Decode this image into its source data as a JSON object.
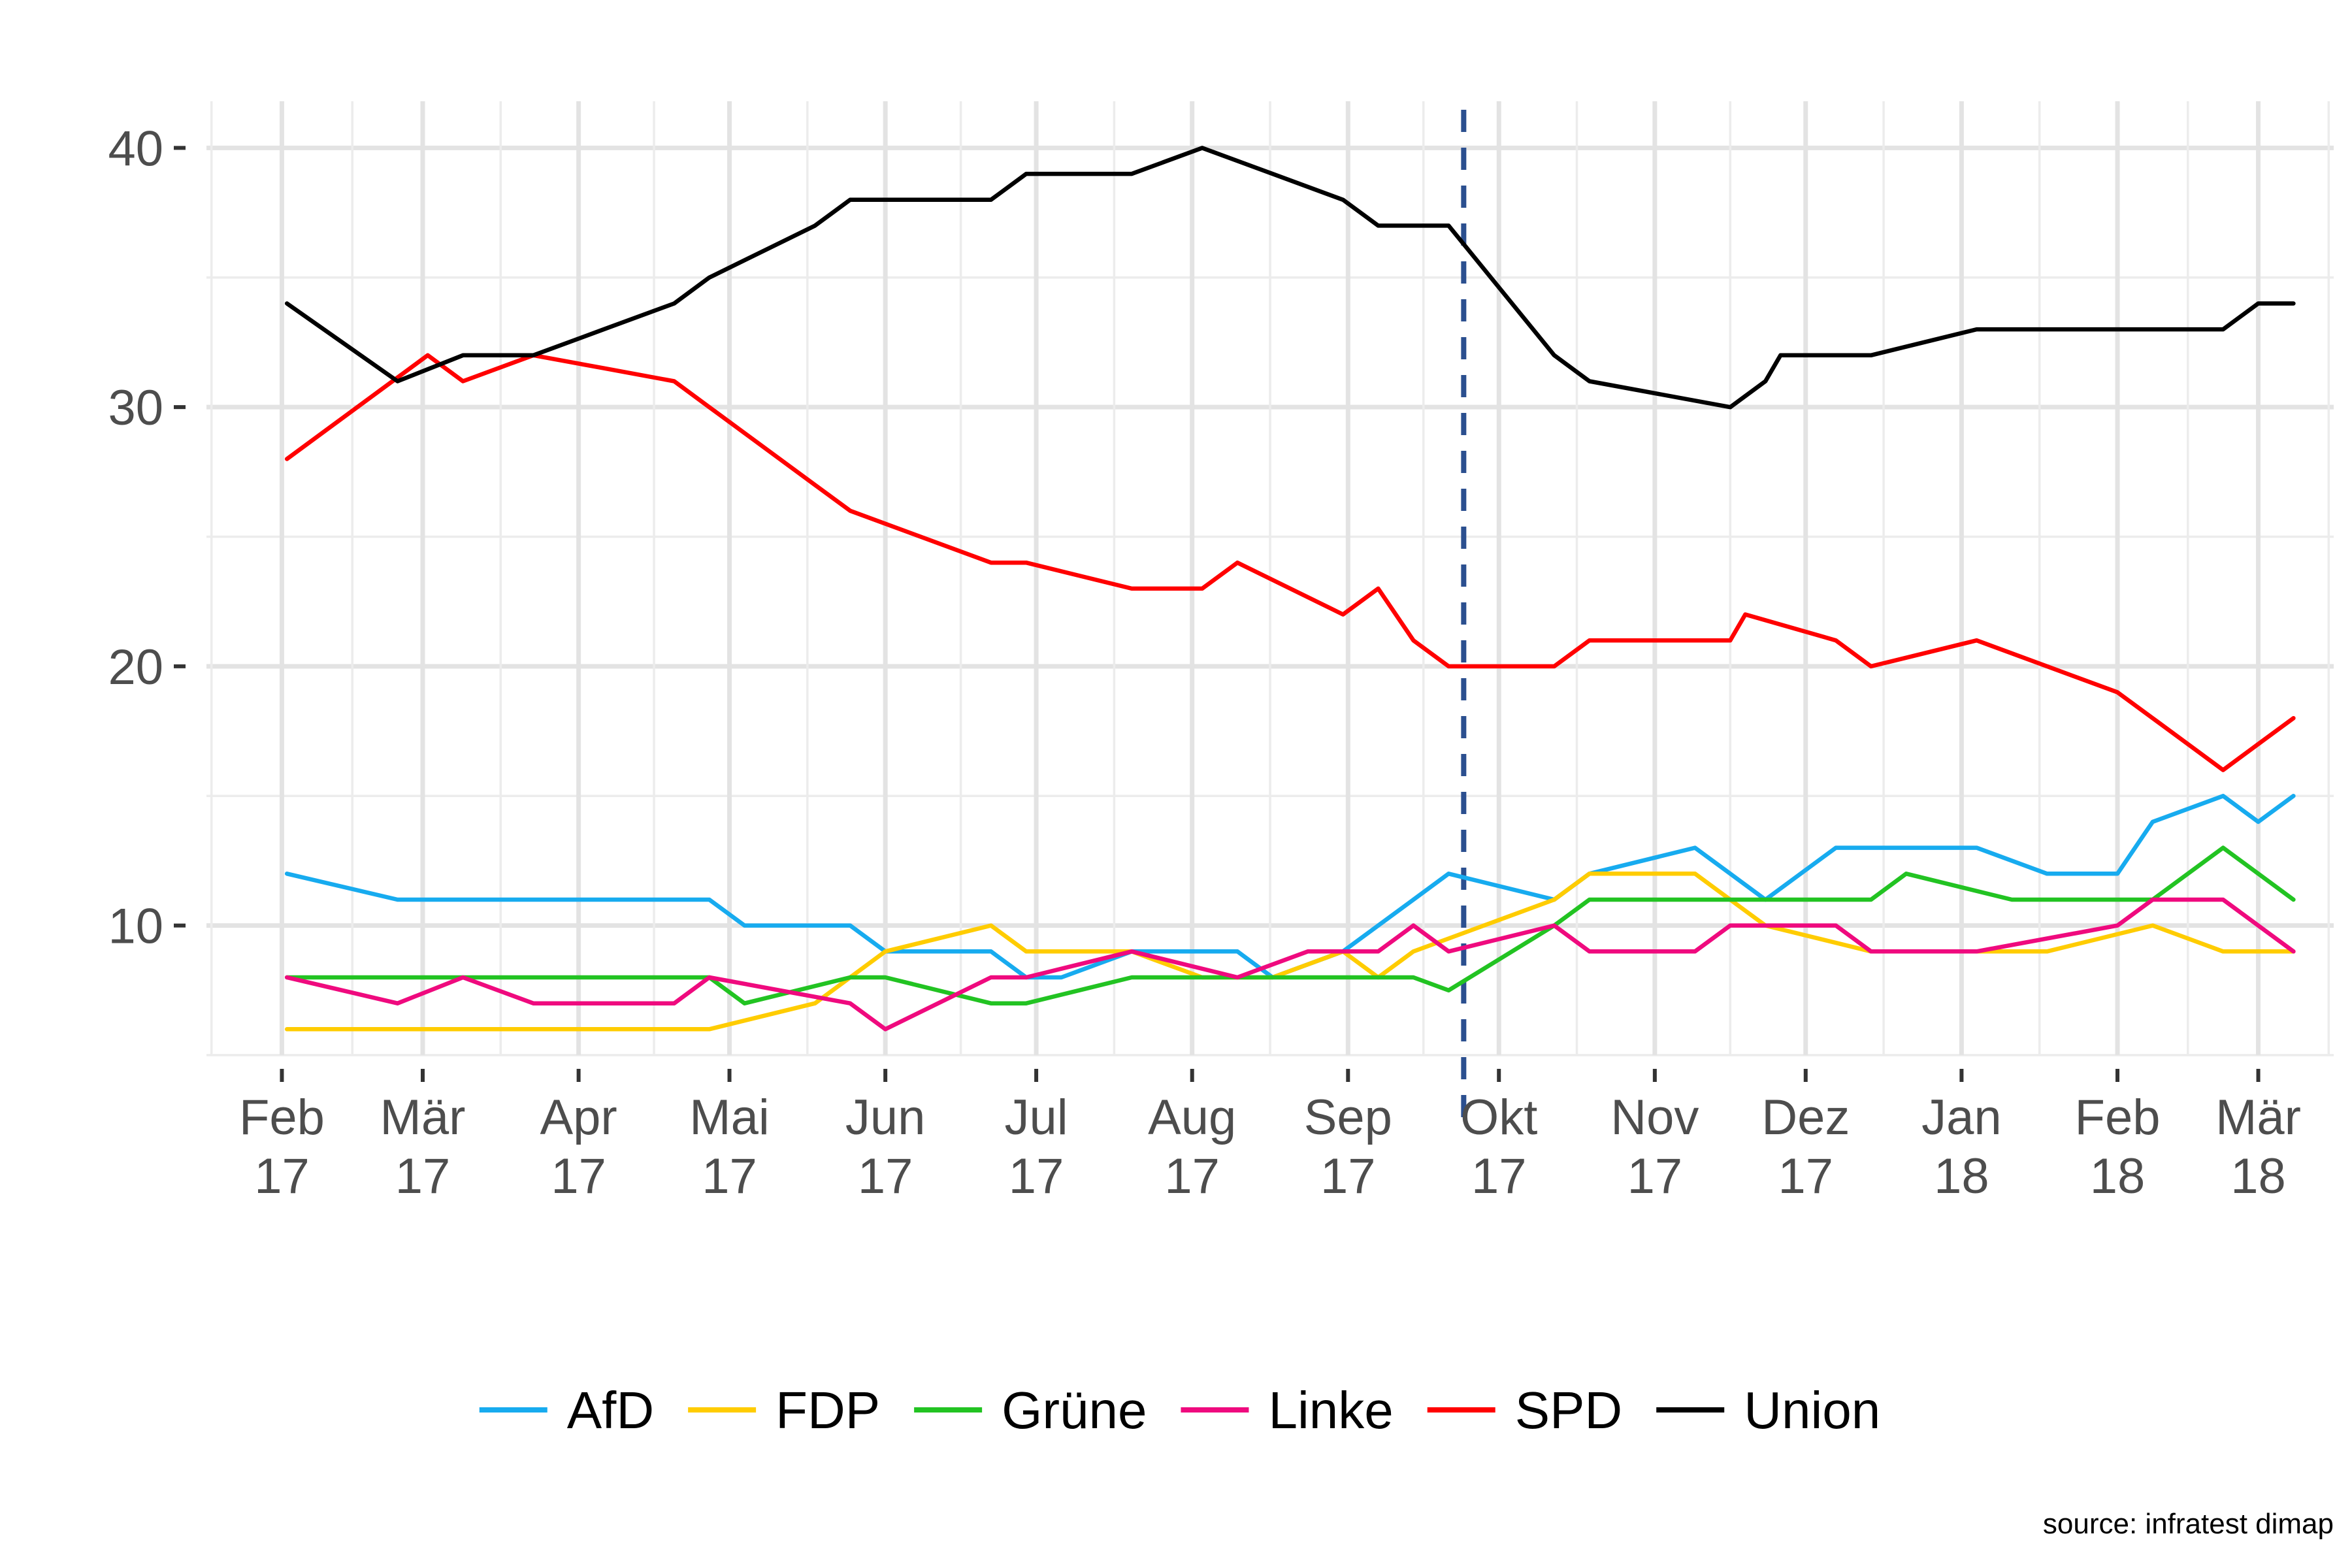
{
  "chart_data": {
    "type": "line",
    "x_ticks": [
      {
        "label": [
          "Feb",
          "17"
        ],
        "date": "2017-02-01"
      },
      {
        "label": [
          "Mär",
          "17"
        ],
        "date": "2017-03-01"
      },
      {
        "label": [
          "Apr",
          "17"
        ],
        "date": "2017-04-01"
      },
      {
        "label": [
          "Mai",
          "17"
        ],
        "date": "2017-05-01"
      },
      {
        "label": [
          "Jun",
          "17"
        ],
        "date": "2017-06-01"
      },
      {
        "label": [
          "Jul",
          "17"
        ],
        "date": "2017-07-01"
      },
      {
        "label": [
          "Aug",
          "17"
        ],
        "date": "2017-08-01"
      },
      {
        "label": [
          "Sep",
          "17"
        ],
        "date": "2017-09-01"
      },
      {
        "label": [
          "Okt",
          "17"
        ],
        "date": "2017-10-01"
      },
      {
        "label": [
          "Nov",
          "17"
        ],
        "date": "2017-11-01"
      },
      {
        "label": [
          "Dez",
          "17"
        ],
        "date": "2017-12-01"
      },
      {
        "label": [
          "Jan",
          "18"
        ],
        "date": "2018-01-01"
      },
      {
        "label": [
          "Feb",
          "18"
        ],
        "date": "2018-02-01"
      },
      {
        "label": [
          "Mär",
          "18"
        ],
        "date": "2018-03-01"
      }
    ],
    "y_ticks": [
      10,
      20,
      30,
      40
    ],
    "ylim": [
      5,
      41.8
    ],
    "xlim": [
      "2017-01-17",
      "2018-03-16"
    ],
    "grid": true,
    "legend_position": "bottom",
    "vline": {
      "date": "2017-09-24"
    },
    "series": [
      {
        "name": "AfD",
        "color": "#17ABEF",
        "points": [
          [
            "2017-02-02",
            12
          ],
          [
            "2017-02-24",
            11
          ],
          [
            "2017-03-30",
            11
          ],
          [
            "2017-04-27",
            11
          ],
          [
            "2017-05-04",
            10
          ],
          [
            "2017-05-25",
            10
          ],
          [
            "2017-06-01",
            9
          ],
          [
            "2017-06-22",
            9
          ],
          [
            "2017-06-29",
            8
          ],
          [
            "2017-07-06",
            8
          ],
          [
            "2017-07-20",
            9
          ],
          [
            "2017-08-03",
            9
          ],
          [
            "2017-08-10",
            9
          ],
          [
            "2017-08-17",
            8
          ],
          [
            "2017-08-31",
            9
          ],
          [
            "2017-09-07",
            10
          ],
          [
            "2017-09-14",
            11
          ],
          [
            "2017-09-21",
            12
          ],
          [
            "2017-10-12",
            11
          ],
          [
            "2017-10-19",
            12
          ],
          [
            "2017-11-09",
            13
          ],
          [
            "2017-11-16",
            12
          ],
          [
            "2017-11-23",
            11
          ],
          [
            "2017-12-07",
            13
          ],
          [
            "2017-12-14",
            13
          ],
          [
            "2017-12-28",
            13
          ],
          [
            "2018-01-04",
            13
          ],
          [
            "2018-01-18",
            12
          ],
          [
            "2018-02-01",
            12
          ],
          [
            "2018-02-08",
            14
          ],
          [
            "2018-02-22",
            15
          ],
          [
            "2018-03-01",
            14
          ],
          [
            "2018-03-08",
            15
          ]
        ]
      },
      {
        "name": "FDP",
        "color": "#FFCC00",
        "points": [
          [
            "2017-02-02",
            6
          ],
          [
            "2017-04-27",
            6
          ],
          [
            "2017-05-18",
            7
          ],
          [
            "2017-05-25",
            8
          ],
          [
            "2017-06-01",
            9
          ],
          [
            "2017-06-22",
            10
          ],
          [
            "2017-06-29",
            9
          ],
          [
            "2017-07-20",
            9
          ],
          [
            "2017-08-03",
            8
          ],
          [
            "2017-08-17",
            8
          ],
          [
            "2017-08-31",
            9
          ],
          [
            "2017-09-07",
            8
          ],
          [
            "2017-09-14",
            9
          ],
          [
            "2017-09-21",
            9.5
          ],
          [
            "2017-10-12",
            11
          ],
          [
            "2017-10-19",
            12
          ],
          [
            "2017-11-09",
            12
          ],
          [
            "2017-11-16",
            11
          ],
          [
            "2017-11-23",
            10
          ],
          [
            "2017-12-14",
            9
          ],
          [
            "2017-12-28",
            9
          ],
          [
            "2018-01-18",
            9
          ],
          [
            "2018-02-08",
            10
          ],
          [
            "2018-02-22",
            9
          ],
          [
            "2018-03-08",
            9
          ]
        ]
      },
      {
        "name": "Grüne",
        "color": "#22C322",
        "points": [
          [
            "2017-02-02",
            8
          ],
          [
            "2017-04-27",
            8
          ],
          [
            "2017-05-04",
            7
          ],
          [
            "2017-05-25",
            8
          ],
          [
            "2017-06-01",
            8
          ],
          [
            "2017-06-22",
            7
          ],
          [
            "2017-06-29",
            7
          ],
          [
            "2017-07-20",
            8
          ],
          [
            "2017-09-14",
            8
          ],
          [
            "2017-09-21",
            7.5
          ],
          [
            "2017-10-12",
            10
          ],
          [
            "2017-10-19",
            11
          ],
          [
            "2017-11-23",
            11
          ],
          [
            "2017-12-14",
            11
          ],
          [
            "2017-12-21",
            12
          ],
          [
            "2018-01-11",
            11
          ],
          [
            "2018-02-08",
            11
          ],
          [
            "2018-02-22",
            13
          ],
          [
            "2018-03-01",
            12
          ],
          [
            "2018-03-08",
            11
          ]
        ]
      },
      {
        "name": "Linke",
        "color": "#EF0A7E",
        "points": [
          [
            "2017-02-02",
            8
          ],
          [
            "2017-02-24",
            7
          ],
          [
            "2017-03-09",
            8
          ],
          [
            "2017-03-23",
            7
          ],
          [
            "2017-04-20",
            7
          ],
          [
            "2017-04-27",
            8
          ],
          [
            "2017-05-25",
            7
          ],
          [
            "2017-06-01",
            6
          ],
          [
            "2017-06-22",
            8
          ],
          [
            "2017-06-29",
            8
          ],
          [
            "2017-07-20",
            9
          ],
          [
            "2017-08-10",
            8
          ],
          [
            "2017-08-24",
            9
          ],
          [
            "2017-09-07",
            9
          ],
          [
            "2017-09-14",
            10
          ],
          [
            "2017-09-21",
            9
          ],
          [
            "2017-10-12",
            10
          ],
          [
            "2017-10-19",
            9
          ],
          [
            "2017-11-09",
            9
          ],
          [
            "2017-11-16",
            10
          ],
          [
            "2017-12-07",
            10
          ],
          [
            "2017-12-14",
            9
          ],
          [
            "2018-01-04",
            9
          ],
          [
            "2018-02-01",
            10
          ],
          [
            "2018-02-08",
            11
          ],
          [
            "2018-02-22",
            11
          ],
          [
            "2018-03-01",
            10
          ],
          [
            "2018-03-08",
            9
          ]
        ]
      },
      {
        "name": "SPD",
        "color": "#FF0000",
        "points": [
          [
            "2017-02-02",
            28
          ],
          [
            "2017-03-02",
            32
          ],
          [
            "2017-03-09",
            31
          ],
          [
            "2017-03-23",
            32
          ],
          [
            "2017-04-06",
            31.5
          ],
          [
            "2017-04-20",
            31
          ],
          [
            "2017-04-27",
            30
          ],
          [
            "2017-05-18",
            27
          ],
          [
            "2017-05-25",
            26
          ],
          [
            "2017-06-22",
            24
          ],
          [
            "2017-06-29",
            24
          ],
          [
            "2017-07-20",
            23
          ],
          [
            "2017-08-03",
            23
          ],
          [
            "2017-08-10",
            24
          ],
          [
            "2017-08-31",
            22
          ],
          [
            "2017-09-07",
            23
          ],
          [
            "2017-09-14",
            21
          ],
          [
            "2017-09-21",
            20
          ],
          [
            "2017-10-12",
            20
          ],
          [
            "2017-10-19",
            21
          ],
          [
            "2017-11-09",
            21
          ],
          [
            "2017-11-16",
            21
          ],
          [
            "2017-11-19",
            22
          ],
          [
            "2017-12-07",
            21
          ],
          [
            "2017-12-14",
            20
          ],
          [
            "2018-01-04",
            21
          ],
          [
            "2018-02-01",
            19
          ],
          [
            "2018-02-08",
            18
          ],
          [
            "2018-02-22",
            16
          ],
          [
            "2018-03-01",
            17
          ],
          [
            "2018-03-08",
            18
          ]
        ]
      },
      {
        "name": "Union",
        "color": "#000000",
        "points": [
          [
            "2017-02-02",
            34
          ],
          [
            "2017-02-24",
            31
          ],
          [
            "2017-03-09",
            32
          ],
          [
            "2017-03-23",
            32
          ],
          [
            "2017-04-06",
            33
          ],
          [
            "2017-04-20",
            34
          ],
          [
            "2017-04-27",
            35
          ],
          [
            "2017-05-18",
            37
          ],
          [
            "2017-05-25",
            38
          ],
          [
            "2017-06-01",
            38
          ],
          [
            "2017-06-22",
            38
          ],
          [
            "2017-06-29",
            39
          ],
          [
            "2017-07-20",
            39
          ],
          [
            "2017-08-03",
            40
          ],
          [
            "2017-08-17",
            39
          ],
          [
            "2017-08-31",
            38
          ],
          [
            "2017-09-07",
            37
          ],
          [
            "2017-09-21",
            37
          ],
          [
            "2017-10-12",
            32
          ],
          [
            "2017-10-19",
            31
          ],
          [
            "2017-11-16",
            30
          ],
          [
            "2017-11-23",
            31
          ],
          [
            "2017-11-26",
            32
          ],
          [
            "2017-12-14",
            32
          ],
          [
            "2018-01-04",
            33
          ],
          [
            "2018-02-01",
            33
          ],
          [
            "2018-02-22",
            33
          ],
          [
            "2018-03-01",
            34
          ],
          [
            "2018-03-08",
            34
          ]
        ]
      }
    ],
    "source": "source: infratest dimap"
  }
}
